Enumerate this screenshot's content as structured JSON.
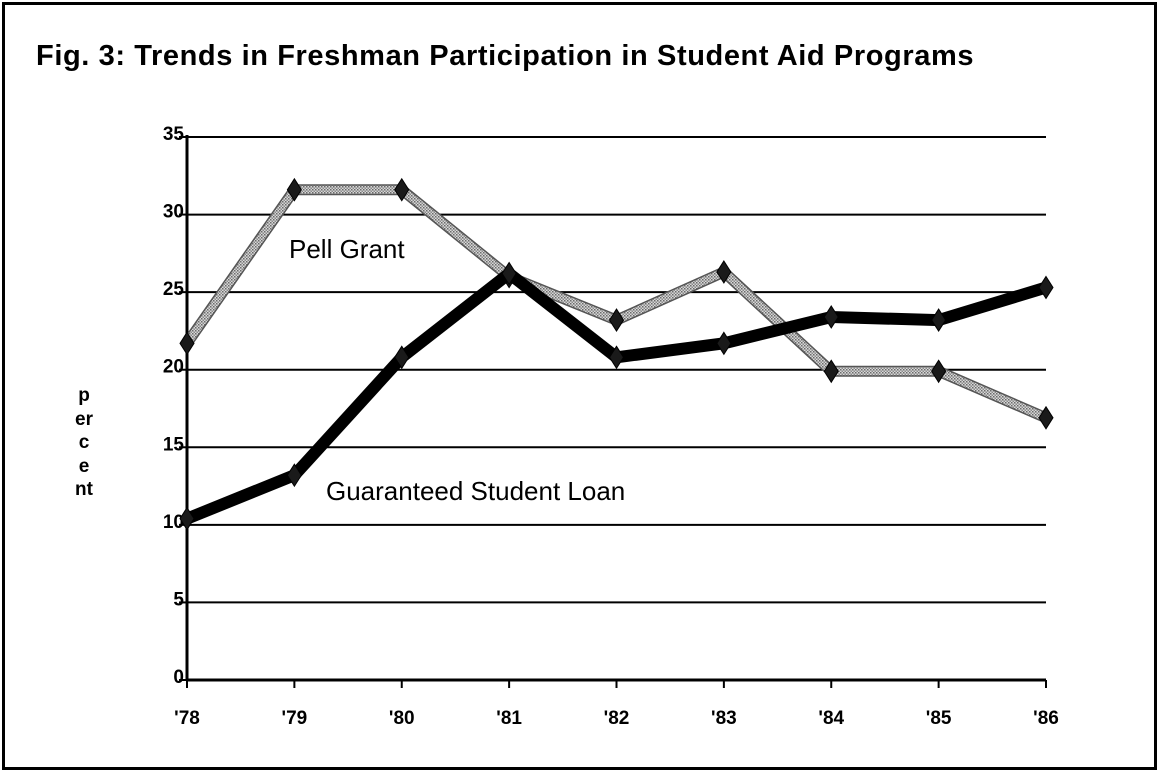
{
  "chart_data": {
    "type": "line",
    "title": "Fig. 3: Trends in Freshman Participation in Student Aid Programs",
    "xlabel": "",
    "ylabel": "percent",
    "categories": [
      "'78",
      "'79",
      "'80",
      "'81",
      "'82",
      "'83",
      "'84",
      "'85",
      "'86"
    ],
    "yticks": [
      "0",
      "5",
      "10",
      "15",
      "20",
      "25",
      "30",
      "35"
    ],
    "ylim": [
      0,
      35
    ],
    "grid": true,
    "legend": "none",
    "series": [
      {
        "name": "Pell Grant",
        "values": [
          21.7,
          31.6,
          31.6,
          26.0,
          23.2,
          26.3,
          19.9,
          19.9,
          16.9
        ],
        "color": "#9a9a9a",
        "style": "shaded"
      },
      {
        "name": "Guaranteed Student Loan",
        "values": [
          10.4,
          13.2,
          20.8,
          26.2,
          20.8,
          21.7,
          23.4,
          23.2,
          25.3
        ],
        "color": "#000000",
        "style": "solid"
      }
    ]
  }
}
